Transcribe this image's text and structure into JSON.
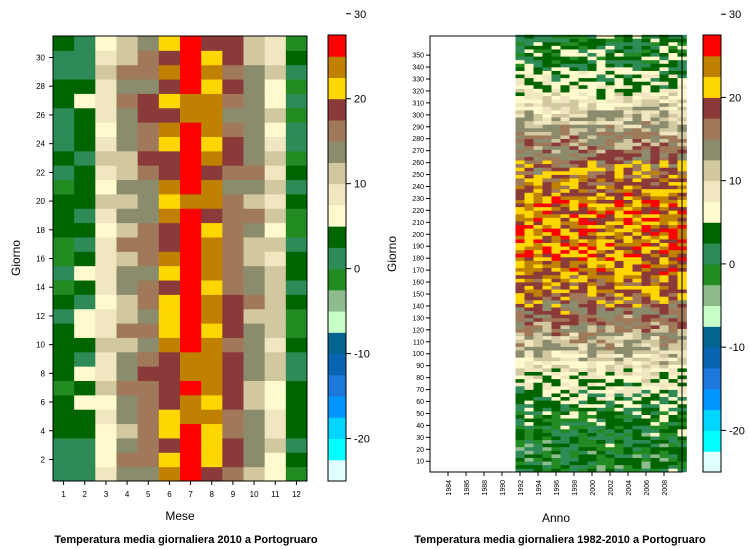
{
  "palette": {
    "scale": [
      -25,
      -22.5,
      -20,
      -17.5,
      -15,
      -12.5,
      -10,
      -7.5,
      -5,
      -2.5,
      0,
      2.5,
      5,
      7.5,
      10,
      12.5,
      15,
      17.5,
      20,
      22.5,
      25,
      27.5,
      30,
      32.5,
      35
    ],
    "colors": [
      "#e0ffff",
      "#00ffff",
      "#00d6ff",
      "#0096ff",
      "#1e78dc",
      "#0a64b4",
      "#046490",
      "#c8ffc8",
      "#8fbc8f",
      "#228b22",
      "#2e8b57",
      "#006400",
      "#fffacd",
      "#f0e6c0",
      "#d2c8a0",
      "#8b8b6e",
      "#a0785a",
      "#8b3a3a",
      "#ffd700",
      "#c08000",
      "#ff0000"
    ]
  },
  "chart_data": [
    {
      "type": "heatmap",
      "title": "Temperatura media giornaliera 2010 a Portogruaro",
      "xlabel": "Mese",
      "ylabel": "Giorno",
      "x": [
        1,
        2,
        3,
        4,
        5,
        6,
        7,
        8,
        9,
        10,
        11,
        12
      ],
      "xlim": [
        0.5,
        12.5
      ],
      "ylim": [
        0.5,
        31.5
      ],
      "y_ticks": [
        2,
        4,
        6,
        8,
        10,
        12,
        14,
        16,
        18,
        20,
        22,
        24,
        26,
        28,
        30
      ],
      "colorbar_ticks": [
        -20,
        -10,
        0,
        10,
        20,
        30
      ],
      "monthly_profile": [
        1.5,
        3.5,
        8.5,
        13.0,
        16.0,
        21.0,
        26.0,
        22.0,
        17.5,
        13.0,
        9.0,
        2.0
      ]
    },
    {
      "type": "heatmap",
      "title": "Temperatura media giornaliera 1982-2010 a Portogruaro",
      "xlabel": "Anno",
      "ylabel": "Giorno",
      "x_ticks": [
        1984,
        1986,
        1988,
        1990,
        1992,
        1994,
        1996,
        1998,
        2000,
        2002,
        2004,
        2006,
        2008
      ],
      "xlim": [
        1982,
        2010
      ],
      "data_years": [
        1992,
        2010
      ],
      "ylim": [
        1,
        366
      ],
      "y_ticks": [
        10,
        20,
        30,
        40,
        50,
        60,
        70,
        80,
        90,
        100,
        110,
        120,
        130,
        140,
        150,
        160,
        170,
        180,
        190,
        200,
        210,
        220,
        230,
        240,
        250,
        260,
        270,
        280,
        290,
        300,
        310,
        320,
        330,
        340,
        350
      ],
      "colorbar_ticks": [
        -20,
        -10,
        0,
        10,
        20,
        30
      ]
    }
  ]
}
